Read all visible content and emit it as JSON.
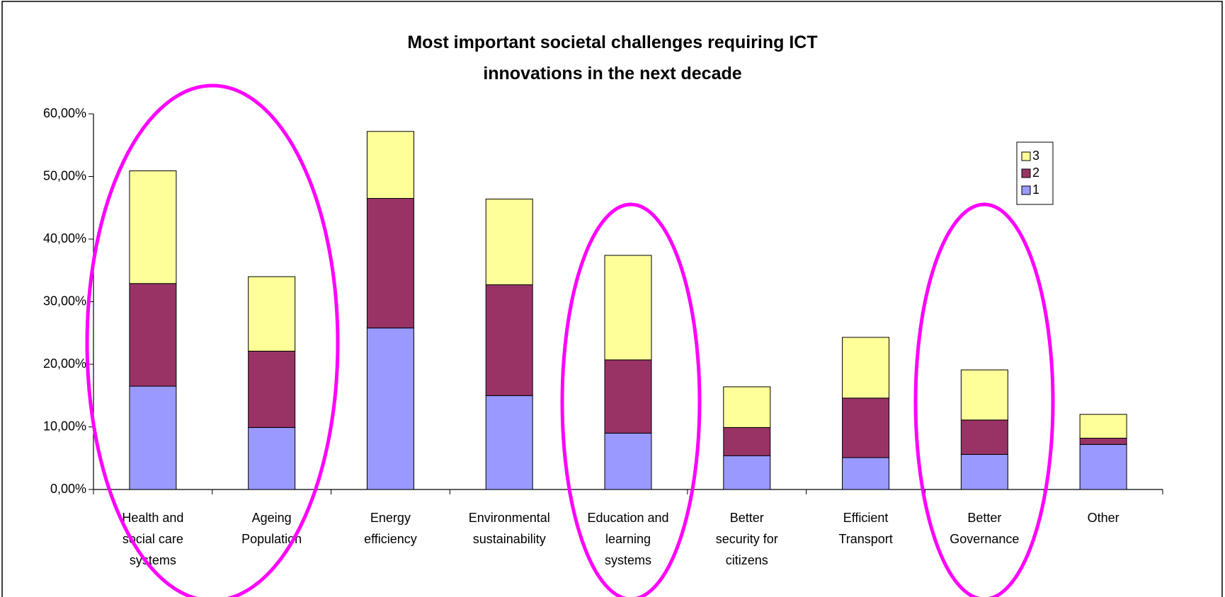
{
  "chart_data": {
    "type": "stacked_bar",
    "title": "Most important societal challenges requiring ICT innovations in the next decade",
    "categories": [
      "Health and social care systems",
      "Ageing Population",
      "Energy efficiency",
      "Environmental sustainability",
      "Education and learning systems",
      "Better security for citizens",
      "Efficient Transport",
      "Better Governance",
      "Other"
    ],
    "series": [
      {
        "name": "1",
        "color": "#9999ff",
        "values": [
          16.5,
          9.9,
          25.8,
          15.0,
          9.0,
          5.4,
          5.1,
          5.6,
          7.2
        ]
      },
      {
        "name": "2",
        "color": "#993366",
        "values": [
          16.4,
          12.2,
          20.7,
          17.7,
          11.7,
          4.5,
          9.5,
          5.5,
          1.0
        ]
      },
      {
        "name": "3",
        "color": "#ffff99",
        "values": [
          18.0,
          11.9,
          10.7,
          13.7,
          16.7,
          6.5,
          9.7,
          8.0,
          3.8
        ]
      }
    ],
    "ylim": [
      0,
      60
    ],
    "yticks": [
      {
        "value": 0,
        "label": "0,00%"
      },
      {
        "value": 10,
        "label": "10,00%"
      },
      {
        "value": 20,
        "label": "20,00%"
      },
      {
        "value": 30,
        "label": "30,00%"
      },
      {
        "value": 40,
        "label": "40,00%"
      },
      {
        "value": 50,
        "label": "50,00%"
      },
      {
        "value": 60,
        "label": "60,00%"
      }
    ],
    "legend": "top-right"
  }
}
